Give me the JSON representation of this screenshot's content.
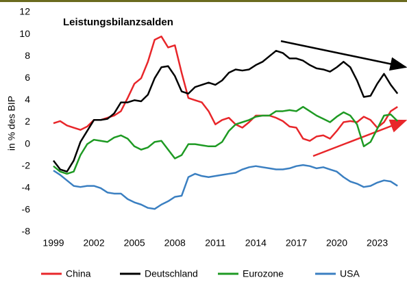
{
  "chart_data": {
    "type": "line",
    "title": "Leistungsbilanzsalden",
    "y_label": "in % des BIP",
    "x": [
      1999,
      1999.5,
      2000,
      2000.5,
      2001,
      2001.5,
      2002,
      2002.5,
      2003,
      2003.5,
      2004,
      2004.5,
      2005,
      2005.5,
      2006,
      2006.5,
      2007,
      2007.5,
      2008,
      2008.5,
      2009,
      2009.5,
      2010,
      2010.5,
      2011,
      2011.5,
      2012,
      2012.5,
      2013,
      2013.5,
      2014,
      2014.5,
      2015,
      2015.5,
      2016,
      2016.5,
      2017,
      2017.5,
      2018,
      2018.5,
      2019,
      2019.5,
      2020,
      2020.5,
      2021,
      2021.5,
      2022,
      2022.5,
      2023,
      2023.5,
      2024,
      2024.5
    ],
    "series": [
      {
        "name": "China",
        "color": "#e8262a",
        "values": [
          1.9,
          2.1,
          1.7,
          1.5,
          1.3,
          1.6,
          2.2,
          2.2,
          2.4,
          2.6,
          3.0,
          4.2,
          5.5,
          6.0,
          7.5,
          9.5,
          9.8,
          8.8,
          9.0,
          6.5,
          4.2,
          4.0,
          3.8,
          3.0,
          1.8,
          2.2,
          2.4,
          1.8,
          1.5,
          2.0,
          2.6,
          2.6,
          2.6,
          2.4,
          2.1,
          1.6,
          1.5,
          0.5,
          0.3,
          0.7,
          0.8,
          0.5,
          1.2,
          2.0,
          2.1,
          2.0,
          2.5,
          2.2,
          1.5,
          2.0,
          3.0,
          3.4
        ]
      },
      {
        "name": "Deutschland",
        "color": "#000000",
        "values": [
          -1.5,
          -2.3,
          -2.5,
          -1.5,
          0.2,
          1.2,
          2.2,
          2.2,
          2.3,
          2.8,
          3.8,
          3.8,
          4.0,
          3.9,
          4.5,
          6.0,
          7.0,
          7.1,
          6.2,
          4.8,
          4.6,
          5.2,
          5.4,
          5.6,
          5.4,
          5.8,
          6.5,
          6.8,
          6.7,
          6.8,
          7.2,
          7.5,
          8.0,
          8.5,
          8.3,
          7.8,
          7.8,
          7.6,
          7.2,
          6.9,
          6.8,
          6.6,
          7.0,
          7.5,
          7.0,
          5.8,
          4.3,
          4.4,
          5.5,
          6.4,
          5.4,
          4.6
        ]
      },
      {
        "name": "Eurozone",
        "color": "#1e9a23",
        "values": [
          -2.0,
          -2.5,
          -2.7,
          -2.5,
          -1.0,
          0.0,
          0.4,
          0.3,
          0.2,
          0.6,
          0.8,
          0.5,
          -0.2,
          -0.5,
          -0.3,
          0.2,
          0.3,
          -0.5,
          -1.3,
          -1.0,
          0.0,
          0.0,
          -0.1,
          -0.2,
          -0.2,
          0.2,
          1.2,
          1.8,
          2.0,
          2.2,
          2.5,
          2.6,
          2.6,
          3.0,
          3.0,
          3.1,
          3.0,
          3.4,
          3.0,
          2.6,
          2.3,
          2.0,
          2.5,
          2.9,
          2.6,
          1.8,
          -0.2,
          0.2,
          1.4,
          2.6,
          2.7,
          2.1
        ]
      },
      {
        "name": "USA",
        "color": "#3a7fc1",
        "values": [
          -2.4,
          -2.8,
          -3.3,
          -3.8,
          -3.9,
          -3.8,
          -3.8,
          -4.0,
          -4.4,
          -4.5,
          -4.5,
          -5.0,
          -5.3,
          -5.5,
          -5.8,
          -5.9,
          -5.5,
          -5.2,
          -4.8,
          -4.7,
          -3.0,
          -2.7,
          -2.9,
          -3.0,
          -2.9,
          -2.8,
          -2.7,
          -2.6,
          -2.3,
          -2.1,
          -2.0,
          -2.1,
          -2.2,
          -2.3,
          -2.3,
          -2.2,
          -2.0,
          -1.9,
          -2.0,
          -2.2,
          -2.1,
          -2.3,
          -2.5,
          -3.0,
          -3.4,
          -3.6,
          -3.9,
          -3.8,
          -3.5,
          -3.3,
          -3.4,
          -3.8
        ]
      }
    ],
    "xlim": [
      1999,
      2025
    ],
    "xticks": [
      1999,
      2002,
      2005,
      2008,
      2011,
      2014,
      2017,
      2020,
      2023
    ],
    "ylim": [
      -8,
      12
    ],
    "yticks": [
      -8,
      -6,
      -4,
      -2,
      0,
      2,
      4,
      6,
      8,
      10,
      12
    ],
    "grid": false,
    "legend": "bottom"
  }
}
